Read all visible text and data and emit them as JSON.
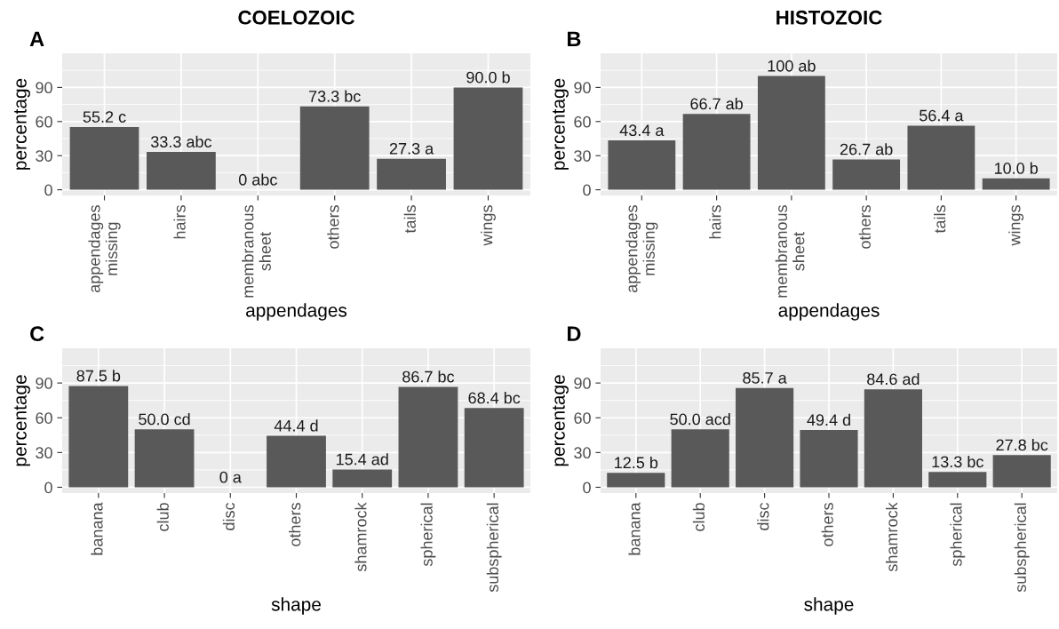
{
  "chart_data": [
    {
      "type": "bar",
      "title": "COELOZOIC",
      "annotations": [
        "A"
      ],
      "xlabel": "appendages",
      "ylabel": "percentage",
      "categories": [
        "appendages\nmissing",
        "hairs",
        "membranous\nsheet",
        "others",
        "tails",
        "wings"
      ],
      "values": [
        55.2,
        33.3,
        0,
        73.3,
        27.3,
        90.0
      ],
      "value_labels": [
        "55.2 c",
        "33.3 abc",
        "0 abc",
        "73.3 bc",
        "27.3 a",
        "90.0 b"
      ],
      "color": "#595959",
      "ylim": [
        -5,
        120
      ],
      "yticks": [
        0,
        30,
        60,
        90
      ],
      "grid": true
    },
    {
      "type": "bar",
      "title": "HISTOZOIC",
      "annotations": [
        "B"
      ],
      "xlabel": "appendages",
      "ylabel": "percentage",
      "categories": [
        "appendages\nmissing",
        "hairs",
        "membranous\nsheet",
        "others",
        "tails",
        "wings"
      ],
      "values": [
        43.4,
        66.7,
        100,
        26.7,
        56.4,
        10.0
      ],
      "value_labels": [
        "43.4 a",
        "66.7 ab",
        "100 ab",
        "26.7 ab",
        "56.4 a",
        "10.0 b"
      ],
      "color": "#595959",
      "ylim": [
        -5,
        120
      ],
      "yticks": [
        0,
        30,
        60,
        90
      ],
      "grid": true
    },
    {
      "type": "bar",
      "annotations": [
        "C"
      ],
      "xlabel": "shape",
      "ylabel": "percentage",
      "categories": [
        "banana",
        "club",
        "disc",
        "others",
        "shamrock",
        "spherical",
        "subspherical"
      ],
      "values": [
        87.5,
        50.0,
        0,
        44.4,
        15.4,
        86.7,
        68.4
      ],
      "value_labels": [
        "87.5 b",
        "50.0 cd",
        "0 a",
        "44.4 d",
        "15.4 ad",
        "86.7 bc",
        "68.4 bc"
      ],
      "color": "#595959",
      "ylim": [
        -5,
        120
      ],
      "yticks": [
        0,
        30,
        60,
        90
      ],
      "grid": true
    },
    {
      "type": "bar",
      "annotations": [
        "D"
      ],
      "xlabel": "shape",
      "ylabel": "percentage",
      "categories": [
        "banana",
        "club",
        "disc",
        "others",
        "shamrock",
        "spherical",
        "subspherical"
      ],
      "values": [
        12.5,
        50.0,
        85.7,
        49.4,
        84.6,
        13.3,
        27.8
      ],
      "value_labels": [
        "12.5 b",
        "50.0 acd",
        "85.7 a",
        "49.4 d",
        "84.6 ad",
        "13.3 bc",
        "27.8 bc"
      ],
      "color": "#595959",
      "ylim": [
        -5,
        120
      ],
      "yticks": [
        0,
        30,
        60,
        90
      ],
      "grid": true
    }
  ]
}
